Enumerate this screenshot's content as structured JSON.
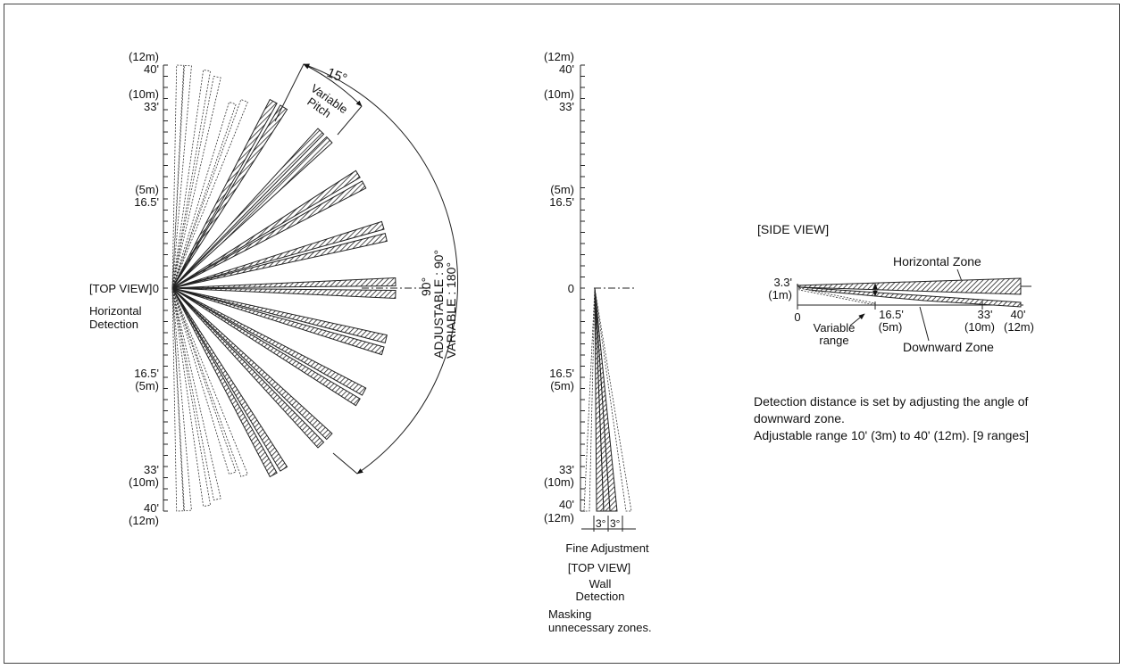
{
  "top_view": {
    "label": "[TOP VIEW]",
    "sublabel_line1": "Horizontal",
    "sublabel_line2": "Detection",
    "scale_labels": [
      {
        "m": "(12m)",
        "ft": "40'"
      },
      {
        "m": "(10m)",
        "ft": "33'"
      },
      {
        "m": "(5m)",
        "ft": "16.5'"
      },
      {
        "zero": "0"
      },
      {
        "ft": "16.5'",
        "m": "(5m)"
      },
      {
        "ft": "33'",
        "m": "(10m)"
      },
      {
        "ft": "40'",
        "m": "(12m)"
      }
    ],
    "pitch_angle": "15°",
    "pitch_line1": "Variable",
    "pitch_line2": "Pitch",
    "ninety": "90°",
    "adjustable_line1": "ADJUSTABLE : 90°",
    "adjustable_line2": "VARIABLE : 180°"
  },
  "wall_view": {
    "scale_labels": [
      {
        "m": "(12m)",
        "ft": "40'"
      },
      {
        "m": "(10m)",
        "ft": "33'"
      },
      {
        "m": "(5m)",
        "ft": "16.5'"
      },
      {
        "zero": "0"
      },
      {
        "ft": "16.5'",
        "m": "(5m)"
      },
      {
        "ft": "33'",
        "m": "(10m)"
      },
      {
        "ft": "40'",
        "m": "(12m)"
      }
    ],
    "angle_left": "3°",
    "angle_right": "3°",
    "fine_adjustment": "Fine Adjustment",
    "label": "[TOP VIEW]",
    "sublabel_line1": "Wall",
    "sublabel_line2": "Detection",
    "masking_line1": "Masking",
    "masking_line2": "unnecessary zones."
  },
  "side_view": {
    "title": "[SIDE VIEW]",
    "horizontal_zone": "Horizontal Zone",
    "downward_zone": "Downward Zone",
    "height_ft": "3.3'",
    "height_m": "(1m)",
    "zero": "0",
    "variable_line1": "Variable",
    "variable_line2": "range",
    "tick_16_ft": "16.5'",
    "tick_16_m": "(5m)",
    "tick_33_ft": "33'",
    "tick_33_m": "(10m)",
    "tick_40_ft": "40'",
    "tick_40_m": "(12m)"
  },
  "note": {
    "line1": "Detection distance is set by adjusting the angle of",
    "line2": "downward zone.",
    "line3": "Adjustable range 10' (3m) to 40' (12m). [9 ranges]"
  }
}
